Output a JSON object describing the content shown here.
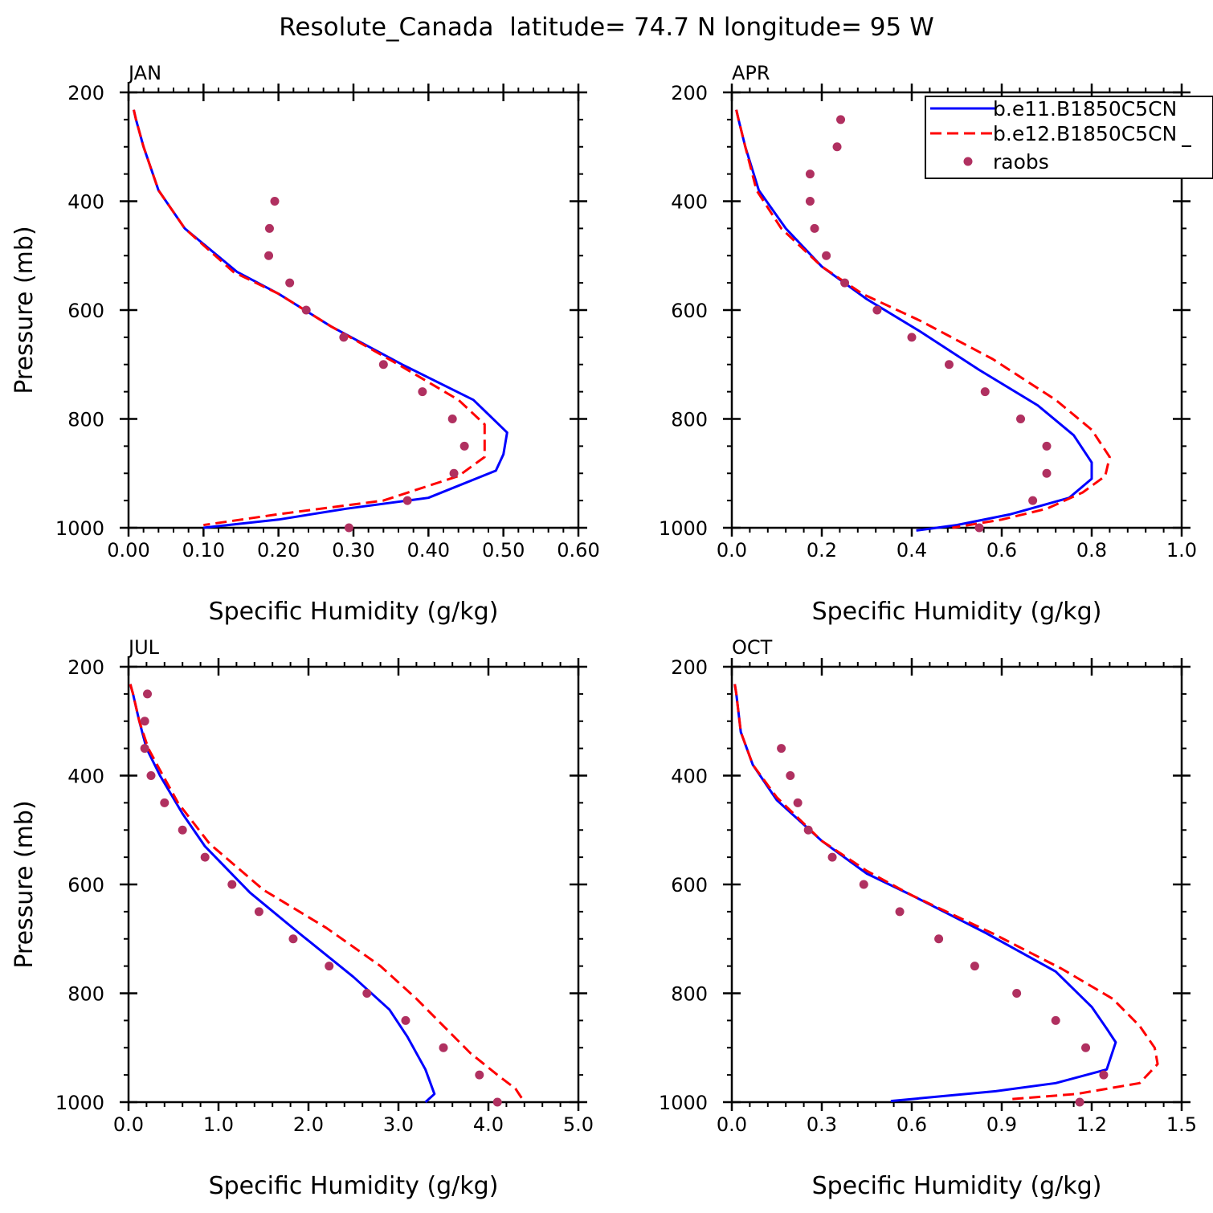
{
  "figure": {
    "title": "Resolute_Canada  latitude= 74.7 N longitude= 95 W"
  },
  "legend": {
    "entries": [
      {
        "label": "b.e11.B1850C5CN",
        "style": "solid",
        "color": "#0000ff"
      },
      {
        "label": "b.e12.B1850C5CN",
        "style": "dashed",
        "color": "#ff0000"
      },
      {
        "label": "raobs",
        "style": "marker",
        "color": "#b03060"
      }
    ]
  },
  "colors": {
    "model1": "#0000ff",
    "model2": "#ff0000",
    "obs": "#b03060"
  },
  "chart_data": [
    {
      "type": "line",
      "panel": "JAN",
      "xlabel": "Specific Humidity (g/kg)",
      "ylabel": "Pressure (mb)",
      "xlim": [
        0,
        0.6
      ],
      "ylim": [
        200,
        1000
      ],
      "y_inverted": true,
      "xticks": [
        0,
        0.1,
        0.2,
        0.3,
        0.4,
        0.5,
        0.6
      ],
      "xtick_labels": [
        "0.00",
        "0.10",
        "0.20",
        "0.30",
        "0.40",
        "0.50",
        "0.60"
      ],
      "yticks": [
        200,
        400,
        600,
        800,
        1000
      ],
      "ytick_labels": [
        "200",
        "400",
        "600",
        "800",
        "1000"
      ],
      "series": [
        {
          "name": "b.e11.B1850C5CN",
          "points": [
            [
              0.007,
              232
            ],
            [
              0.01,
              250
            ],
            [
              0.02,
              300
            ],
            [
              0.04,
              380
            ],
            [
              0.075,
              450
            ],
            [
              0.145,
              530
            ],
            [
              0.2,
              570
            ],
            [
              0.27,
              630
            ],
            [
              0.365,
              700
            ],
            [
              0.46,
              765
            ],
            [
              0.505,
              825
            ],
            [
              0.5,
              865
            ],
            [
              0.49,
              895
            ],
            [
              0.4,
              945
            ],
            [
              0.29,
              965
            ],
            [
              0.2,
              985
            ],
            [
              0.1,
              1000
            ]
          ]
        },
        {
          "name": "b.e12.B1850C5CN",
          "points": [
            [
              0.007,
              232
            ],
            [
              0.01,
              250
            ],
            [
              0.02,
              300
            ],
            [
              0.04,
              380
            ],
            [
              0.075,
              450
            ],
            [
              0.14,
              530
            ],
            [
              0.2,
              570
            ],
            [
              0.27,
              630
            ],
            [
              0.36,
              700
            ],
            [
              0.44,
              765
            ],
            [
              0.475,
              810
            ],
            [
              0.475,
              870
            ],
            [
              0.44,
              905
            ],
            [
              0.34,
              950
            ],
            [
              0.2,
              975
            ],
            [
              0.1,
              995
            ]
          ]
        },
        {
          "name": "raobs",
          "points": [
            [
              0.195,
              400
            ],
            [
              0.188,
              450
            ],
            [
              0.187,
              500
            ],
            [
              0.215,
              550
            ],
            [
              0.237,
              600
            ],
            [
              0.287,
              650
            ],
            [
              0.34,
              700
            ],
            [
              0.392,
              750
            ],
            [
              0.432,
              800
            ],
            [
              0.448,
              850
            ],
            [
              0.434,
              900
            ],
            [
              0.372,
              950
            ],
            [
              0.294,
              1000
            ]
          ]
        }
      ]
    },
    {
      "type": "line",
      "panel": "APR",
      "xlabel": "Specific Humidity (g/kg)",
      "ylabel": "",
      "xlim": [
        0,
        1.0
      ],
      "ylim": [
        200,
        1000
      ],
      "y_inverted": true,
      "xticks": [
        0,
        0.2,
        0.4,
        0.6,
        0.8,
        1.0
      ],
      "xtick_labels": [
        "0.0",
        "0.2",
        "0.4",
        "0.6",
        "0.8",
        "1.0"
      ],
      "yticks": [
        200,
        400,
        600,
        800,
        1000
      ],
      "ytick_labels": [
        "200",
        "400",
        "600",
        "800",
        "1000"
      ],
      "series": [
        {
          "name": "b.e11.B1850C5CN",
          "points": [
            [
              0.01,
              232
            ],
            [
              0.015,
              250
            ],
            [
              0.03,
              300
            ],
            [
              0.06,
              380
            ],
            [
              0.12,
              450
            ],
            [
              0.2,
              520
            ],
            [
              0.3,
              580
            ],
            [
              0.42,
              640
            ],
            [
              0.55,
              710
            ],
            [
              0.68,
              775
            ],
            [
              0.76,
              830
            ],
            [
              0.8,
              880
            ],
            [
              0.8,
              910
            ],
            [
              0.75,
              945
            ],
            [
              0.62,
              975
            ],
            [
              0.5,
              995
            ],
            [
              0.41,
              1005
            ]
          ]
        },
        {
          "name": "b.e12.B1850C5CN",
          "points": [
            [
              0.01,
              232
            ],
            [
              0.015,
              250
            ],
            [
              0.03,
              300
            ],
            [
              0.055,
              380
            ],
            [
              0.11,
              450
            ],
            [
              0.2,
              520
            ],
            [
              0.29,
              570
            ],
            [
              0.42,
              620
            ],
            [
              0.58,
              690
            ],
            [
              0.72,
              765
            ],
            [
              0.8,
              820
            ],
            [
              0.84,
              870
            ],
            [
              0.83,
              905
            ],
            [
              0.78,
              935
            ],
            [
              0.7,
              965
            ],
            [
              0.6,
              985
            ],
            [
              0.49,
              1000
            ]
          ]
        },
        {
          "name": "raobs",
          "points": [
            [
              0.242,
              250
            ],
            [
              0.234,
              300
            ],
            [
              0.174,
              350
            ],
            [
              0.174,
              400
            ],
            [
              0.184,
              450
            ],
            [
              0.21,
              500
            ],
            [
              0.251,
              550
            ],
            [
              0.323,
              600
            ],
            [
              0.4,
              650
            ],
            [
              0.483,
              700
            ],
            [
              0.563,
              750
            ],
            [
              0.642,
              800
            ],
            [
              0.7,
              850
            ],
            [
              0.7,
              900
            ],
            [
              0.669,
              950
            ],
            [
              0.55,
              1000
            ]
          ]
        }
      ]
    },
    {
      "type": "line",
      "panel": "JUL",
      "xlabel": "Specific Humidity (g/kg)",
      "ylabel": "Pressure (mb)",
      "xlim": [
        0,
        5.0
      ],
      "ylim": [
        200,
        1000
      ],
      "y_inverted": true,
      "xticks": [
        0,
        1,
        2,
        3,
        4,
        5
      ],
      "xtick_labels": [
        "0.0",
        "1.0",
        "2.0",
        "3.0",
        "4.0",
        "5.0"
      ],
      "yticks": [
        200,
        400,
        600,
        800,
        1000
      ],
      "ytick_labels": [
        "200",
        "400",
        "600",
        "800",
        "1000"
      ],
      "series": [
        {
          "name": "b.e11.B1850C5CN",
          "points": [
            [
              0.02,
              232
            ],
            [
              0.05,
              250
            ],
            [
              0.12,
              300
            ],
            [
              0.2,
              350
            ],
            [
              0.35,
              400
            ],
            [
              0.6,
              470
            ],
            [
              0.85,
              530
            ],
            [
              1.35,
              615
            ],
            [
              1.9,
              690
            ],
            [
              2.5,
              770
            ],
            [
              2.9,
              830
            ],
            [
              3.1,
              880
            ],
            [
              3.3,
              940
            ],
            [
              3.4,
              985
            ],
            [
              3.3,
              1000
            ]
          ]
        },
        {
          "name": "b.e12.B1850C5CN",
          "points": [
            [
              0.02,
              232
            ],
            [
              0.05,
              250
            ],
            [
              0.12,
              300
            ],
            [
              0.22,
              350
            ],
            [
              0.35,
              390
            ],
            [
              0.55,
              450
            ],
            [
              0.9,
              525
            ],
            [
              1.5,
              610
            ],
            [
              2.2,
              680
            ],
            [
              2.8,
              750
            ],
            [
              3.2,
              810
            ],
            [
              3.5,
              860
            ],
            [
              3.8,
              910
            ],
            [
              4.1,
              950
            ],
            [
              4.3,
              975
            ],
            [
              4.4,
              1000
            ]
          ]
        },
        {
          "name": "raobs",
          "points": [
            [
              0.21,
              250
            ],
            [
              0.18,
              300
            ],
            [
              0.18,
              350
            ],
            [
              0.25,
              400
            ],
            [
              0.4,
              450
            ],
            [
              0.6,
              500
            ],
            [
              0.85,
              550
            ],
            [
              1.15,
              600
            ],
            [
              1.45,
              650
            ],
            [
              1.83,
              700
            ],
            [
              2.23,
              750
            ],
            [
              2.65,
              800
            ],
            [
              3.08,
              850
            ],
            [
              3.5,
              900
            ],
            [
              3.9,
              950
            ],
            [
              4.1,
              1000
            ]
          ]
        }
      ]
    },
    {
      "type": "line",
      "panel": "OCT",
      "xlabel": "Specific Humidity (g/kg)",
      "ylabel": "",
      "xlim": [
        0,
        1.5
      ],
      "ylim": [
        200,
        1000
      ],
      "y_inverted": true,
      "xticks": [
        0,
        0.3,
        0.6,
        0.9,
        1.2,
        1.5
      ],
      "xtick_labels": [
        "0.0",
        "0.3",
        "0.6",
        "0.9",
        "1.2",
        "1.5"
      ],
      "yticks": [
        200,
        400,
        600,
        800,
        1000
      ],
      "ytick_labels": [
        "200",
        "400",
        "600",
        "800",
        "1000"
      ],
      "series": [
        {
          "name": "b.e11.B1850C5CN",
          "points": [
            [
              0.01,
              232
            ],
            [
              0.015,
              250
            ],
            [
              0.03,
              320
            ],
            [
              0.07,
              380
            ],
            [
              0.15,
              445
            ],
            [
              0.3,
              520
            ],
            [
              0.45,
              580
            ],
            [
              0.6,
              620
            ],
            [
              0.85,
              690
            ],
            [
              1.08,
              760
            ],
            [
              1.2,
              825
            ],
            [
              1.25,
              865
            ],
            [
              1.28,
              890
            ],
            [
              1.25,
              940
            ],
            [
              1.08,
              965
            ],
            [
              0.88,
              980
            ],
            [
              0.53,
              998
            ]
          ]
        },
        {
          "name": "b.e12.B1850C5CN",
          "points": [
            [
              0.01,
              232
            ],
            [
              0.015,
              250
            ],
            [
              0.03,
              320
            ],
            [
              0.07,
              380
            ],
            [
              0.15,
              440
            ],
            [
              0.3,
              520
            ],
            [
              0.45,
              575
            ],
            [
              0.6,
              620
            ],
            [
              0.87,
              690
            ],
            [
              1.1,
              755
            ],
            [
              1.27,
              810
            ],
            [
              1.36,
              860
            ],
            [
              1.41,
              900
            ],
            [
              1.42,
              930
            ],
            [
              1.36,
              965
            ],
            [
              1.15,
              985
            ],
            [
              0.92,
              995
            ]
          ]
        },
        {
          "name": "raobs",
          "points": [
            [
              0.165,
              350
            ],
            [
              0.195,
              400
            ],
            [
              0.22,
              450
            ],
            [
              0.255,
              500
            ],
            [
              0.335,
              550
            ],
            [
              0.44,
              600
            ],
            [
              0.56,
              650
            ],
            [
              0.69,
              700
            ],
            [
              0.81,
              750
            ],
            [
              0.95,
              800
            ],
            [
              1.08,
              850
            ],
            [
              1.18,
              900
            ],
            [
              1.24,
              950
            ],
            [
              1.16,
              1000
            ]
          ]
        }
      ]
    }
  ]
}
